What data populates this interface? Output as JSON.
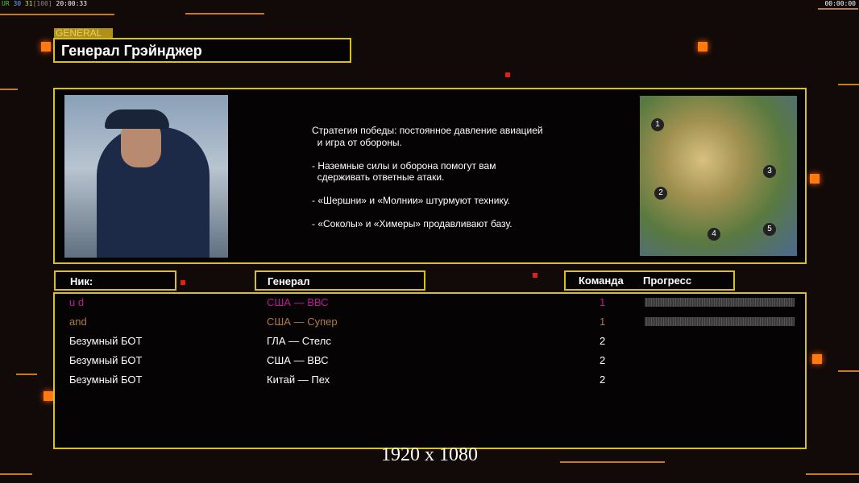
{
  "hud": {
    "fps_label": "UR",
    "val1": "30",
    "val2": "31",
    "val3": "[100]",
    "time": "20:00:33",
    "timer": "00:00:00"
  },
  "general": {
    "tag": "GENERAL",
    "name": "Генерал Грэйнджер"
  },
  "description": [
    "Стратегия победы: постоянное давление авиацией",
    "  и игра от обороны.",
    "",
    "- Наземные силы и оборона помогут вам",
    "  сдерживать ответные атаки.",
    "",
    "- «Шершни» и «Молнии» штурмуют технику.",
    "",
    "- «Соколы» и «Химеры» продавливают базу."
  ],
  "map": {
    "start_positions": [
      "1",
      "2",
      "3",
      "4",
      "5"
    ]
  },
  "headers": {
    "nick": "Ник:",
    "general": "Генерал",
    "team": "Команда",
    "progress": "Прогресс"
  },
  "players": [
    {
      "nick": "u d",
      "general": "США — ВВС",
      "team": "1",
      "color": "#c0189a",
      "progress": 0
    },
    {
      "nick": "and",
      "general": "США — Супер",
      "team": "1",
      "color": "#b07a48",
      "progress": 0
    },
    {
      "nick": "Безумный БОТ",
      "general": "ГЛА — Стелс",
      "team": "2",
      "color": "#ffffff"
    },
    {
      "nick": "Безумный БОТ",
      "general": "США — ВВС",
      "team": "2",
      "color": "#ffffff"
    },
    {
      "nick": "Безумный БОТ",
      "general": "Китай — Пех",
      "team": "2",
      "color": "#ffffff"
    }
  ],
  "resolution": "1920 x 1080"
}
